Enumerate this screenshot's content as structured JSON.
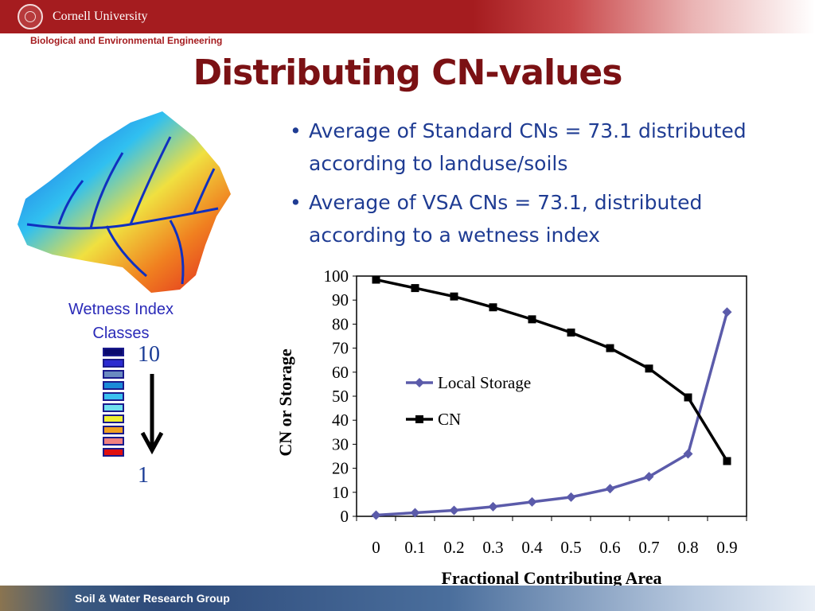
{
  "header": {
    "university": "Cornell University",
    "department": "Biological and Environmental Engineering"
  },
  "slide": {
    "title": "Distributing CN-values",
    "bullets": [
      "Average of Standard CNs = 73.1 distributed according to landuse/soils",
      "Average of VSA CNs  = 73.1, distributed according to a wetness index"
    ],
    "bullet_char": "•"
  },
  "wetness_legend": {
    "title": "Wetness Index Classes",
    "high": "10",
    "low": "1",
    "class_colors": [
      "#0a0a6e",
      "#2a2ad0",
      "#6a8ac0",
      "#1a8ad8",
      "#3ac0f0",
      "#70e0f0",
      "#f0f030",
      "#f0a020",
      "#f08080",
      "#e01010"
    ]
  },
  "footer": {
    "text": "Soil & Water Research Group"
  },
  "chart_data": {
    "type": "line",
    "x": [
      0,
      0.1,
      0.2,
      0.3,
      0.4,
      0.5,
      0.6,
      0.7,
      0.8,
      0.9
    ],
    "x_tick_labels": [
      "0",
      "0.1",
      "0.2",
      "0.3",
      "0.4",
      "0.5",
      "0.6",
      "0.7",
      "0.8",
      "0.9"
    ],
    "series": [
      {
        "name": "Local Storage",
        "color": "#5b5baa",
        "marker": "diamond",
        "values": [
          0.5,
          1.5,
          2.5,
          4,
          6,
          8,
          11.5,
          16.5,
          26,
          85
        ]
      },
      {
        "name": "CN",
        "color": "#000000",
        "marker": "square",
        "values": [
          98.5,
          95,
          91.5,
          87,
          82,
          76.5,
          70,
          61.5,
          49.5,
          23
        ]
      }
    ],
    "xlabel": "Fractional Contributing Area",
    "ylabel": "CN or Storage",
    "ylim": [
      0,
      100
    ],
    "y_ticks": [
      0,
      10,
      20,
      30,
      40,
      50,
      60,
      70,
      80,
      90,
      100
    ],
    "grid": false,
    "legend_position": "center"
  }
}
